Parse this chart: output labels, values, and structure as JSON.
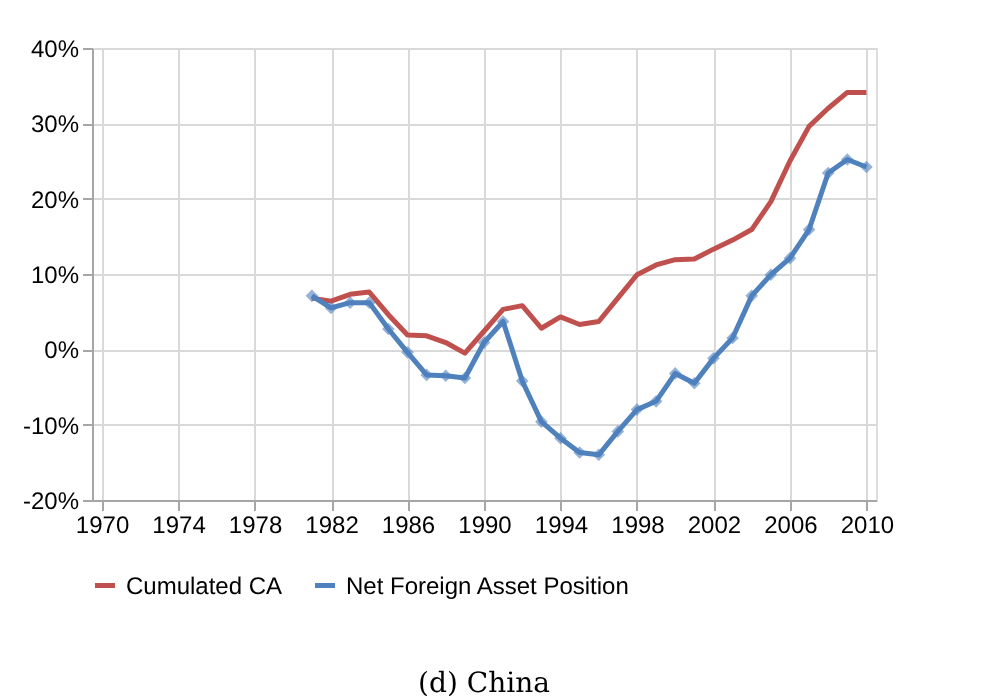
{
  "chart_data": {
    "type": "line",
    "title": "(d) China",
    "x": [
      1981,
      1982,
      1983,
      1984,
      1985,
      1986,
      1987,
      1988,
      1989,
      1990,
      1991,
      1992,
      1993,
      1994,
      1995,
      1996,
      1997,
      1998,
      1999,
      2000,
      2001,
      2002,
      2003,
      2004,
      2005,
      2006,
      2007,
      2008,
      2009,
      2010
    ],
    "series": [
      {
        "name": "Cumulated CA",
        "color": "#c0504d",
        "marker": "none",
        "values": [
          6.8,
          6.4,
          7.3,
          7.6,
          4.6,
          1.9,
          1.8,
          0.9,
          -0.5,
          2.4,
          5.3,
          5.8,
          2.8,
          4.3,
          3.3,
          3.7,
          6.8,
          9.9,
          11.2,
          11.9,
          12.0,
          13.3,
          14.5,
          15.9,
          19.6,
          25.0,
          29.6,
          32.0,
          34.1,
          34.1
        ]
      },
      {
        "name": "Net Foreign Asset Position",
        "color": "#4f81bd",
        "marker": "diamond",
        "values": [
          7.1,
          5.5,
          6.2,
          6.2,
          2.7,
          -0.4,
          -3.4,
          -3.5,
          -3.8,
          0.9,
          3.7,
          -4.2,
          -9.6,
          -11.8,
          -13.7,
          -14.0,
          -10.9,
          -8.0,
          -6.9,
          -3.2,
          -4.5,
          -1.2,
          1.5,
          7.1,
          9.9,
          12.1,
          15.9,
          23.4,
          25.2,
          24.2
        ]
      }
    ],
    "xlim": [
      1969.5,
      2010.5
    ],
    "xticks": [
      1970,
      1974,
      1978,
      1982,
      1986,
      1990,
      1994,
      1998,
      2002,
      2006,
      2010
    ],
    "ylim": [
      -20,
      40
    ],
    "yticks": [
      {
        "value": -20,
        "label": "-20%"
      },
      {
        "value": -10,
        "label": "-10%"
      },
      {
        "value": 0,
        "label": "0%"
      },
      {
        "value": 10,
        "label": "10%"
      },
      {
        "value": 20,
        "label": "20%"
      },
      {
        "value": 30,
        "label": "30%"
      },
      {
        "value": 40,
        "label": "40%"
      }
    ],
    "grid": true,
    "legend": "bottom",
    "line_style": "solid"
  }
}
